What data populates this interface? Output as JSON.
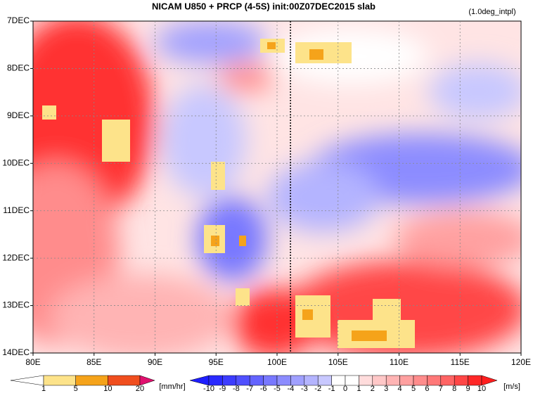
{
  "chart_data": {
    "type": "hovmoller",
    "title": "NICAM  U850 + PRCP (4-5S) init:00Z07DEC2015 slab",
    "subtitle": "(1.0deg_intpl)",
    "xlim": [
      80,
      120
    ],
    "xticks": [
      {
        "value": 80,
        "label": "80E"
      },
      {
        "value": 85,
        "label": "85E"
      },
      {
        "value": 90,
        "label": "90E"
      },
      {
        "value": 95,
        "label": "95E"
      },
      {
        "value": 100,
        "label": "100E"
      },
      {
        "value": 105,
        "label": "105E"
      },
      {
        "value": 110,
        "label": "110E"
      },
      {
        "value": 115,
        "label": "115E"
      },
      {
        "value": 120,
        "label": "120E"
      }
    ],
    "ylim": [
      7,
      14
    ],
    "yticks": [
      {
        "value": 7,
        "label": "7DEC"
      },
      {
        "value": 8,
        "label": "8DEC"
      },
      {
        "value": 9,
        "label": "9DEC"
      },
      {
        "value": 10,
        "label": "10DEC"
      },
      {
        "value": 11,
        "label": "11DEC"
      },
      {
        "value": 12,
        "label": "12DEC"
      },
      {
        "value": 13,
        "label": "13DEC"
      },
      {
        "value": 14,
        "label": "14DEC"
      }
    ],
    "grid": true,
    "vertical_line_x": 101.1,
    "precip_colorbar": {
      "levels": [
        1,
        5,
        10,
        20
      ],
      "unit": "[mm/hr]",
      "colors": [
        "#ffffff",
        "#fde38a",
        "#f5a31a",
        "#f04e1e",
        "#e0106e"
      ]
    },
    "wind_colorbar": {
      "levels": [
        -10,
        -9,
        -8,
        -7,
        -6,
        -5,
        -4,
        -3,
        -2,
        -1,
        0,
        1,
        2,
        3,
        4,
        5,
        6,
        7,
        8,
        9,
        10
      ],
      "unit": "[m/s]",
      "colors": [
        "#1e1eff",
        "#2a2aff",
        "#3c3cff",
        "#5050ff",
        "#6464ff",
        "#7878ff",
        "#8c8cff",
        "#a0a0ff",
        "#b4b4ff",
        "#c8c8ff",
        "#ffffff",
        "#ffffff",
        "#ffdcdc",
        "#ffc8c8",
        "#ffb4b4",
        "#ffa0a0",
        "#ff8c8c",
        "#ff7878",
        "#ff6464",
        "#ff4646",
        "#ff2828",
        "#ff1e1e"
      ]
    }
  }
}
